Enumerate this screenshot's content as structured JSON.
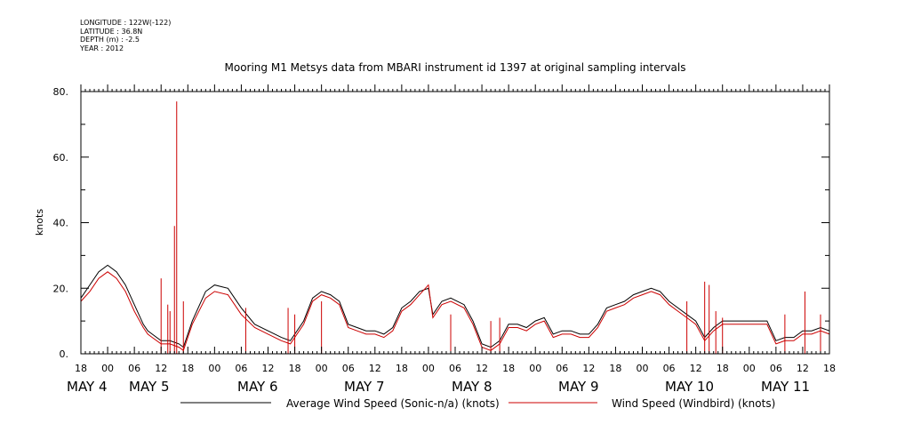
{
  "meta": {
    "longitude": "LONGITUDE : 122W(-122)",
    "latitude": "LATITUDE : 36.8N",
    "depth": "DEPTH (m) : -2.5",
    "year": "YEAR : 2012"
  },
  "chart_data": {
    "type": "line",
    "title": "Mooring M1 Metsys data from MBARI instrument id 1397 at original sampling intervals",
    "ylabel": "knots",
    "xlabel": "",
    "ylim": [
      0,
      80
    ],
    "y_ticks": [
      "0.",
      "20.",
      "40.",
      "60.",
      "80."
    ],
    "x_range_hours": [
      0,
      168
    ],
    "x_tick_labels": [
      "18",
      "00",
      "06",
      "12",
      "18",
      "00",
      "06",
      "12",
      "18",
      "00",
      "06",
      "12",
      "18",
      "00",
      "06",
      "12",
      "18",
      "00",
      "06",
      "12",
      "18",
      "00",
      "06",
      "12",
      "18",
      "00",
      "06",
      "12",
      "18"
    ],
    "date_labels": [
      "MAY  4",
      "MAY  5",
      "MAY  6",
      "MAY  7",
      "MAY  8",
      "MAY  9",
      "MAY 10",
      "MAY 11"
    ],
    "grid": false,
    "series": [
      {
        "name": "Average Wind Speed (Sonic-n/a) (knots)",
        "color": "#000000",
        "x_hours": [
          0,
          2,
          4,
          6,
          8,
          10,
          12,
          14,
          15,
          16,
          18,
          20,
          22,
          23,
          25,
          28,
          30,
          33,
          36,
          39,
          42,
          45,
          47,
          50,
          52,
          54,
          56,
          58,
          60,
          62,
          64,
          66,
          68,
          70,
          72,
          74,
          76,
          78,
          79,
          81,
          83,
          86,
          88,
          90,
          92,
          94,
          96,
          98,
          100,
          102,
          104,
          106,
          108,
          110,
          112,
          114,
          116,
          118,
          120,
          122,
          124,
          126,
          128,
          130,
          132,
          134,
          136,
          138,
          140,
          142,
          144,
          146,
          148,
          150,
          152,
          154,
          156,
          158,
          160,
          162,
          164,
          166,
          168
        ],
        "values": [
          17,
          21,
          25,
          27,
          25,
          21,
          15,
          9,
          7,
          6,
          4,
          4,
          3,
          2,
          10,
          19,
          21,
          20,
          14,
          9,
          7,
          5,
          4,
          10,
          17,
          19,
          18,
          16,
          9,
          8,
          7,
          7,
          6,
          8,
          14,
          16,
          19,
          20,
          12,
          16,
          17,
          15,
          10,
          3,
          2,
          4,
          9,
          9,
          8,
          10,
          11,
          6,
          7,
          7,
          6,
          6,
          9,
          14,
          15,
          16,
          18,
          19,
          20,
          19,
          16,
          14,
          12,
          10,
          5,
          8,
          10,
          10,
          10,
          10,
          10,
          10,
          4,
          5,
          5,
          7,
          7,
          8,
          7
        ]
      },
      {
        "name": "Wind Speed (Windbird) (knots)",
        "color": "#cc0000",
        "x_hours": [
          0,
          2,
          4,
          6,
          8,
          10,
          12,
          14,
          15,
          16,
          18,
          20,
          22,
          23,
          25,
          28,
          30,
          33,
          36,
          39,
          42,
          45,
          47,
          50,
          52,
          54,
          56,
          58,
          60,
          62,
          64,
          66,
          68,
          70,
          72,
          74,
          76,
          78,
          79,
          81,
          83,
          86,
          88,
          90,
          92,
          94,
          96,
          98,
          100,
          102,
          104,
          106,
          108,
          110,
          112,
          114,
          116,
          118,
          120,
          122,
          124,
          126,
          128,
          130,
          132,
          134,
          136,
          138,
          140,
          142,
          144,
          146,
          148,
          150,
          152,
          154,
          156,
          158,
          160,
          162,
          164,
          166,
          168
        ],
        "values": [
          16,
          19,
          23,
          25,
          23,
          19,
          13,
          8,
          6,
          5,
          3,
          3,
          2,
          1,
          9,
          17,
          19,
          18,
          12,
          8,
          6,
          4,
          3,
          9,
          16,
          18,
          17,
          15,
          8,
          7,
          6,
          6,
          5,
          7,
          13,
          15,
          18,
          21,
          11,
          15,
          16,
          14,
          9,
          2,
          1,
          3,
          8,
          8,
          7,
          9,
          10,
          5,
          6,
          6,
          5,
          5,
          8,
          13,
          14,
          15,
          17,
          18,
          19,
          18,
          15,
          13,
          11,
          9,
          4,
          7,
          9,
          9,
          9,
          9,
          9,
          9,
          3,
          4,
          4,
          6,
          6,
          7,
          6
        ],
        "spikes": [
          {
            "x_hour": 21.5,
            "value": 77
          },
          {
            "x_hour": 21.0,
            "value": 39
          },
          {
            "x_hour": 20.0,
            "value": 13
          },
          {
            "x_hour": 18.0,
            "value": 23
          },
          {
            "x_hour": 19.5,
            "value": 15
          },
          {
            "x_hour": 23.0,
            "value": 16
          },
          {
            "x_hour": 37.0,
            "value": 14
          },
          {
            "x_hour": 46.5,
            "value": 14
          },
          {
            "x_hour": 48.0,
            "value": 12
          },
          {
            "x_hour": 54.0,
            "value": 16
          },
          {
            "x_hour": 83.0,
            "value": 12
          },
          {
            "x_hour": 92.0,
            "value": 10
          },
          {
            "x_hour": 94.0,
            "value": 11
          },
          {
            "x_hour": 136.0,
            "value": 16
          },
          {
            "x_hour": 140.0,
            "value": 22
          },
          {
            "x_hour": 141.0,
            "value": 21
          },
          {
            "x_hour": 142.5,
            "value": 13
          },
          {
            "x_hour": 144.0,
            "value": 11
          },
          {
            "x_hour": 158.0,
            "value": 12
          },
          {
            "x_hour": 162.5,
            "value": 19
          },
          {
            "x_hour": 166.0,
            "value": 12
          }
        ]
      }
    ]
  }
}
